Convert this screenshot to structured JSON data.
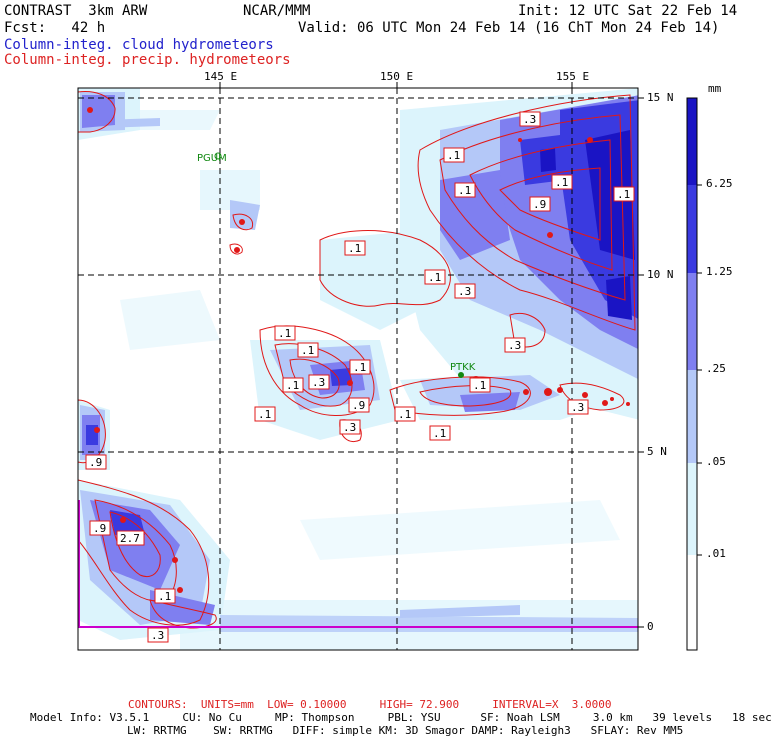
{
  "header": {
    "model_name": "CONTRAST  3km ARW",
    "org": "NCAR/MMM",
    "init": "Init: 12 UTC Sat 22 Feb 14",
    "fcst": "Fcst:   42 h",
    "valid": "Valid: 06 UTC Mon 24 Feb 14 (16 ChT Mon 24 Feb 14)",
    "field1": "Column-integ. cloud hydrometeors",
    "field2": "Column-integ. precip. hydrometeors"
  },
  "axes": {
    "lon_labels": [
      "145 E",
      "150 E",
      "155 E"
    ],
    "lat_labels": [
      "15 N",
      "10 N",
      "5 N",
      "0"
    ]
  },
  "stations": [
    "PGUM",
    "PTKK"
  ],
  "contour_labels": [
    ".1",
    ".1",
    ".3",
    ".9",
    ".1",
    ".1",
    ".3",
    ".1",
    ".1",
    ".1",
    ".1",
    ".1",
    ".3",
    ".1",
    ".9",
    ".1",
    ".3",
    ".1",
    ".1",
    ".3",
    ".1",
    ".3",
    ".9",
    "2.7",
    ".1",
    ".3",
    ".9"
  ],
  "colorbar": {
    "unit": "mm",
    "labels": [
      "6.25",
      "1.25",
      ".25",
      ".05",
      ".01"
    ],
    "colors": [
      "#1a14c4",
      "#3a3ae0",
      "#7f7ff0",
      "#b4c8f8",
      "#dcf4fc",
      "#ffffff"
    ]
  },
  "footer": {
    "contours": "CONTOURS:  UNITS=mm  LOW= 0.10000     HIGH= 72.900     INTERVAL=X  3.0000",
    "model_info": "Model Info: V3.5.1     CU: No Cu     MP: Thompson     PBL: YSU      SF: Noah LSM     3.0 km   39 levels   18 sec",
    "model_info2": "LW: RRTMG    SW: RRTMG   DIFF: simple KM: 3D Smagor DAMP: Rayleigh3   SFLAY: Rev MM5"
  },
  "colors": {
    "contour": "#e01818",
    "station": "#118811",
    "magenta": "#cc00cc"
  }
}
